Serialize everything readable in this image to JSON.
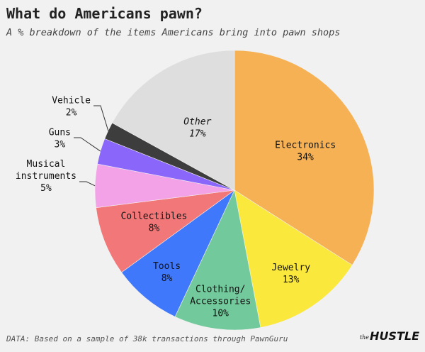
{
  "header": {
    "title": "What do Americans pawn?",
    "subtitle": "A % breakdown of the items Americans bring into pawn shops"
  },
  "footer": {
    "source": "DATA: Based on a sample of 38k transactions through PawnGuru",
    "logo_small": "the",
    "logo_name": "HUSTLE"
  },
  "chart_data": {
    "type": "pie",
    "title": "What do Americans pawn?",
    "subtitle": "A % breakdown of the items Americans bring into pawn shops",
    "unit": "%",
    "start": "12 o'clock",
    "direction": "clockwise",
    "slices": [
      {
        "label": "Electronics",
        "value": 34,
        "color": "#f5b154",
        "label_lines": [
          "Electronics",
          "34%"
        ]
      },
      {
        "label": "Jewelry",
        "value": 13,
        "color": "#fbe83c",
        "label_lines": [
          "Jewelry",
          "13%"
        ]
      },
      {
        "label": "Clothing/ Accessories",
        "value": 10,
        "color": "#72c99b",
        "label_lines": [
          "Clothing/",
          "Accessories",
          "10%"
        ]
      },
      {
        "label": "Tools",
        "value": 8,
        "color": "#3f78fb",
        "label_lines": [
          "Tools",
          "8%"
        ]
      },
      {
        "label": "Collectibles",
        "value": 8,
        "color": "#f27778",
        "label_lines": [
          "Collectibles",
          "8%"
        ]
      },
      {
        "label": "Musical instruments",
        "value": 5,
        "color": "#f3a2e7",
        "label_lines": [
          "Musical",
          "instruments",
          "5%"
        ]
      },
      {
        "label": "Guns",
        "value": 3,
        "color": "#8a66fb",
        "label_lines": [
          "Guns",
          "3%"
        ]
      },
      {
        "label": "Vehicle",
        "value": 2,
        "color": "#3d3d3d",
        "label_lines": [
          "Vehicle",
          "2%"
        ]
      },
      {
        "label": "Other",
        "value": 17,
        "color": "#dedede",
        "label_lines": [
          "Other",
          "17%"
        ]
      }
    ]
  }
}
